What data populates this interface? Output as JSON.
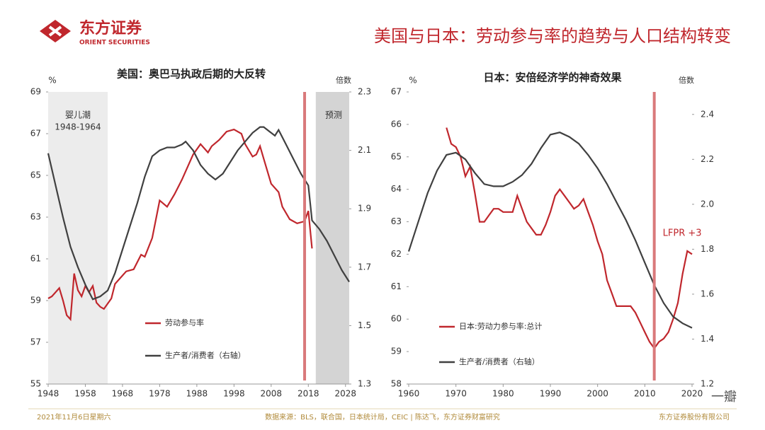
{
  "header": {
    "logo_cn": "东方证券",
    "logo_en": "ORIENT SECURITIES",
    "title": "美国与日本：劳动参与率的趋势与人口结构转变"
  },
  "footer": {
    "date": "2021年11月6日星期六",
    "source": "数据来源：BLS，联合国，日本统计局，CEIC | 陈达飞，东方证券财富研究",
    "company": "东方证券股份有限公司"
  },
  "watermark": "一瓣",
  "chart_data": [
    {
      "type": "line",
      "title": "美国：奥巴马执政后期的大反转",
      "ylabel": "%",
      "y2label": "倍数",
      "xlim": [
        1948,
        2029
      ],
      "xticks": [
        1948,
        1958,
        1968,
        1978,
        1988,
        1998,
        2008,
        2018,
        2028
      ],
      "ylim": [
        55,
        69
      ],
      "yticks": [
        55,
        57,
        59,
        61,
        63,
        65,
        67,
        69
      ],
      "y2lim": [
        1.3,
        2.3
      ],
      "y2ticks": [
        1.3,
        1.5,
        1.7,
        1.9,
        2.1,
        2.3
      ],
      "legend": "lower left",
      "spans": [
        {
          "from": 1948,
          "to": 1964,
          "label": "婴儿潮",
          "sublabel": "1948-1964",
          "color": "#ececec"
        },
        {
          "from": 2020,
          "to": 2029,
          "label": "预测",
          "color": "#d4d4d4"
        }
      ],
      "vline": {
        "x": 2017,
        "color": "#d9797b"
      },
      "series": [
        {
          "name": "劳动参与率",
          "color": "#c0272d",
          "axis": "y",
          "x": [
            1948,
            1949,
            1951,
            1952,
            1953,
            1954,
            1955,
            1956,
            1957,
            1958,
            1959,
            1960,
            1961,
            1962,
            1963,
            1965,
            1966,
            1968,
            1969,
            1971,
            1973,
            1974,
            1976,
            1978,
            1980,
            1982,
            1984,
            1987,
            1989,
            1991,
            1992,
            1994,
            1996,
            1998,
            2000,
            2001,
            2003,
            2004,
            2005,
            2006,
            2008,
            2010,
            2011,
            2013,
            2015,
            2017,
            2018,
            2019
          ],
          "values": [
            59.1,
            59.2,
            59.6,
            59.0,
            58.3,
            58.1,
            60.3,
            59.5,
            59.2,
            59.7,
            59.4,
            59.7,
            58.9,
            58.7,
            58.6,
            59.1,
            59.8,
            60.2,
            60.4,
            60.5,
            61.2,
            61.1,
            62.0,
            63.8,
            63.5,
            64.1,
            64.8,
            66.0,
            66.5,
            66.1,
            66.4,
            66.7,
            67.1,
            67.2,
            67.0,
            66.5,
            65.9,
            66.0,
            66.4,
            65.8,
            64.6,
            64.2,
            63.5,
            62.9,
            62.7,
            62.8,
            63.3,
            61.5
          ]
        },
        {
          "name": "生产者/消费者（右轴）",
          "color": "#404040",
          "axis": "y2",
          "x": [
            1948,
            1950,
            1952,
            1954,
            1956,
            1958,
            1960,
            1962,
            1964,
            1966,
            1968,
            1970,
            1972,
            1974,
            1976,
            1978,
            1980,
            1982,
            1984,
            1985,
            1987,
            1989,
            1991,
            1993,
            1995,
            1997,
            1999,
            2001,
            2003,
            2005,
            2006,
            2008,
            2009,
            2010,
            2012,
            2014,
            2016,
            2018,
            2019,
            2021,
            2023,
            2025,
            2027,
            2029
          ],
          "values": [
            2.09,
            1.98,
            1.87,
            1.77,
            1.7,
            1.64,
            1.59,
            1.6,
            1.62,
            1.68,
            1.76,
            1.84,
            1.92,
            2.01,
            2.08,
            2.1,
            2.11,
            2.11,
            2.12,
            2.13,
            2.1,
            2.05,
            2.02,
            2.0,
            2.02,
            2.06,
            2.1,
            2.13,
            2.16,
            2.18,
            2.18,
            2.16,
            2.15,
            2.17,
            2.12,
            2.07,
            2.02,
            1.98,
            1.86,
            1.83,
            1.79,
            1.74,
            1.69,
            1.65
          ]
        }
      ]
    },
    {
      "type": "line",
      "title": "日本：安倍经济学的神奇效果",
      "ylabel": "%",
      "y2label": "倍数",
      "xlim": [
        1960,
        2020
      ],
      "xticks": [
        1960,
        1970,
        1980,
        1990,
        2000,
        2010,
        2020
      ],
      "ylim": [
        58,
        67
      ],
      "yticks": [
        58,
        59,
        60,
        61,
        62,
        63,
        64,
        65,
        66,
        67
      ],
      "y2lim": [
        1.2,
        2.5
      ],
      "y2ticks": [
        1.2,
        1.4,
        1.6,
        1.8,
        {
          "value": 2,
          "label": "2.0"
        },
        2.2,
        2.4
      ],
      "legend": "lower left",
      "vline": {
        "x": 2012,
        "color": "#d9797b",
        "label": "LFPR +3"
      },
      "series": [
        {
          "name": "日本:劳动力参与率:总计",
          "color": "#c0272d",
          "axis": "y",
          "x": [
            1968,
            1969,
            1970,
            1971,
            1972,
            1973,
            1974,
            1975,
            1976,
            1977,
            1978,
            1979,
            1980,
            1981,
            1982,
            1983,
            1984,
            1985,
            1986,
            1987,
            1988,
            1989,
            1990,
            1991,
            1992,
            1993,
            1994,
            1995,
            1996,
            1997,
            1998,
            1999,
            2000,
            2001,
            2002,
            2003,
            2004,
            2005,
            2006,
            2007,
            2008,
            2009,
            2010,
            2011,
            2012,
            2013,
            2014,
            2015,
            2016,
            2017,
            2018,
            2019,
            2020
          ],
          "values": [
            65.9,
            65.4,
            65.3,
            65.0,
            64.4,
            64.7,
            63.9,
            63.0,
            63.0,
            63.2,
            63.4,
            63.4,
            63.3,
            63.3,
            63.3,
            63.8,
            63.4,
            63.0,
            62.8,
            62.6,
            62.6,
            62.9,
            63.3,
            63.8,
            64.0,
            63.8,
            63.6,
            63.4,
            63.5,
            63.7,
            63.3,
            62.9,
            62.4,
            62.0,
            61.2,
            60.8,
            60.4,
            60.4,
            60.4,
            60.4,
            60.2,
            59.9,
            59.6,
            59.3,
            59.1,
            59.3,
            59.4,
            59.6,
            60.0,
            60.5,
            61.4,
            62.1,
            62.0
          ]
        },
        {
          "name": "生产者/消费者（右轴）",
          "color": "#404040",
          "axis": "y2",
          "x": [
            1960,
            1962,
            1964,
            1966,
            1968,
            1970,
            1972,
            1974,
            1976,
            1978,
            1980,
            1982,
            1984,
            1986,
            1988,
            1990,
            1992,
            1994,
            1996,
            1998,
            2000,
            2002,
            2004,
            2006,
            2008,
            2010,
            2012,
            2014,
            2016,
            2018,
            2020
          ],
          "values": [
            1.79,
            1.92,
            2.05,
            2.15,
            2.22,
            2.23,
            2.2,
            2.14,
            2.09,
            2.08,
            2.08,
            2.1,
            2.13,
            2.18,
            2.25,
            2.31,
            2.32,
            2.3,
            2.27,
            2.22,
            2.16,
            2.09,
            2.01,
            1.93,
            1.84,
            1.74,
            1.64,
            1.56,
            1.5,
            1.47,
            1.45
          ]
        }
      ]
    }
  ]
}
